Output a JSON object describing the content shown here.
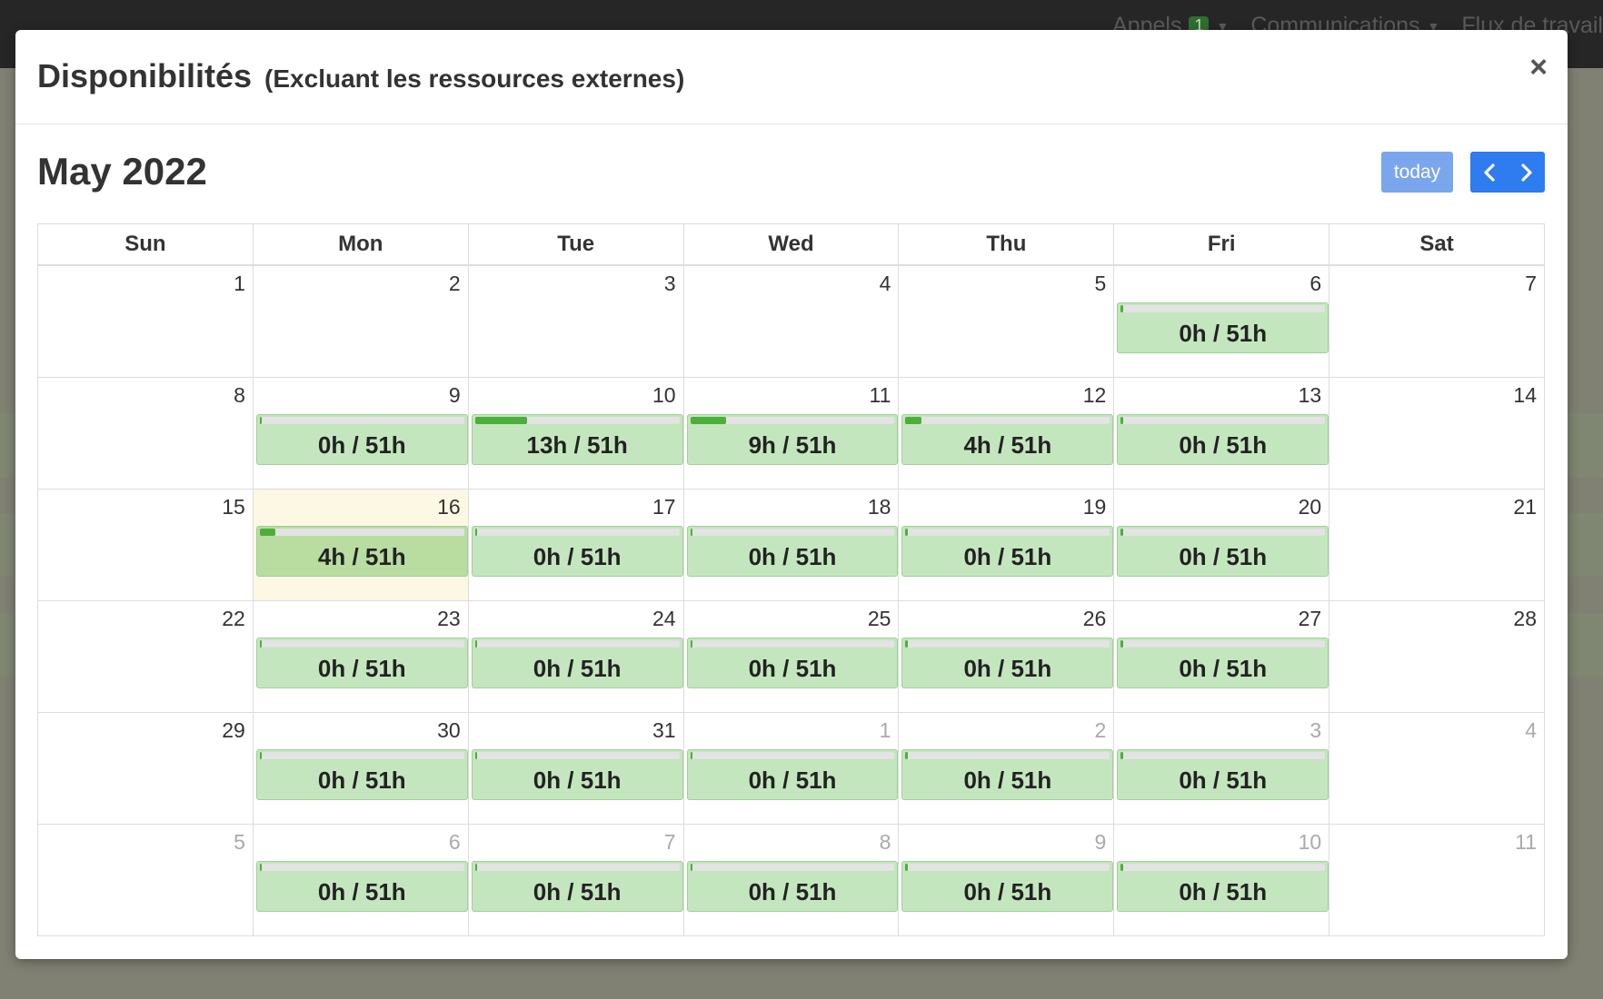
{
  "background": {
    "nav": [
      {
        "label": "Appels",
        "badge": "1"
      },
      {
        "label": "Communications"
      },
      {
        "label": "Flux de travail"
      }
    ]
  },
  "modal": {
    "title": "Disponibilités",
    "subtitle": "(Excluant les ressources externes)",
    "close_label": "×"
  },
  "calendar": {
    "month_title": "May 2022",
    "today_label": "today",
    "prev_icon": "chevron-left-icon",
    "next_icon": "chevron-right-icon",
    "weekdays": [
      "Sun",
      "Mon",
      "Tue",
      "Wed",
      "Thu",
      "Fri",
      "Sat"
    ],
    "weeks": [
      [
        {
          "n": "1"
        },
        {
          "n": "2"
        },
        {
          "n": "3"
        },
        {
          "n": "4"
        },
        {
          "n": "5"
        },
        {
          "n": "6",
          "hours": "0h / 51h",
          "used": 0
        },
        {
          "n": "7"
        }
      ],
      [
        {
          "n": "8"
        },
        {
          "n": "9",
          "hours": "0h / 51h",
          "used": 0
        },
        {
          "n": "10",
          "hours": "13h / 51h",
          "used": 13
        },
        {
          "n": "11",
          "hours": "9h / 51h",
          "used": 9
        },
        {
          "n": "12",
          "hours": "4h / 51h",
          "used": 4
        },
        {
          "n": "13",
          "hours": "0h / 51h",
          "used": 0
        },
        {
          "n": "14"
        }
      ],
      [
        {
          "n": "15"
        },
        {
          "n": "16",
          "hours": "4h / 51h",
          "used": 4,
          "today": true
        },
        {
          "n": "17",
          "hours": "0h / 51h",
          "used": 0
        },
        {
          "n": "18",
          "hours": "0h / 51h",
          "used": 0
        },
        {
          "n": "19",
          "hours": "0h / 51h",
          "used": 0
        },
        {
          "n": "20",
          "hours": "0h / 51h",
          "used": 0
        },
        {
          "n": "21"
        }
      ],
      [
        {
          "n": "22"
        },
        {
          "n": "23",
          "hours": "0h / 51h",
          "used": 0
        },
        {
          "n": "24",
          "hours": "0h / 51h",
          "used": 0
        },
        {
          "n": "25",
          "hours": "0h / 51h",
          "used": 0
        },
        {
          "n": "26",
          "hours": "0h / 51h",
          "used": 0
        },
        {
          "n": "27",
          "hours": "0h / 51h",
          "used": 0
        },
        {
          "n": "28"
        }
      ],
      [
        {
          "n": "29"
        },
        {
          "n": "30",
          "hours": "0h / 51h",
          "used": 0
        },
        {
          "n": "31",
          "hours": "0h / 51h",
          "used": 0
        },
        {
          "n": "1",
          "other": true,
          "hours": "0h / 51h",
          "used": 0
        },
        {
          "n": "2",
          "other": true,
          "hours": "0h / 51h",
          "used": 0
        },
        {
          "n": "3",
          "other": true,
          "hours": "0h / 51h",
          "used": 0
        },
        {
          "n": "4",
          "other": true
        }
      ],
      [
        {
          "n": "5",
          "other": true
        },
        {
          "n": "6",
          "other": true,
          "hours": "0h / 51h",
          "used": 0
        },
        {
          "n": "7",
          "other": true,
          "hours": "0h / 51h",
          "used": 0
        },
        {
          "n": "8",
          "other": true,
          "hours": "0h / 51h",
          "used": 0
        },
        {
          "n": "9",
          "other": true,
          "hours": "0h / 51h",
          "used": 0
        },
        {
          "n": "10",
          "other": true,
          "hours": "0h / 51h",
          "used": 0
        },
        {
          "n": "11",
          "other": true
        }
      ]
    ],
    "capacity_hours": 51,
    "colors": {
      "event_bg": "#c4e6be",
      "progress_fill": "#4caf3a",
      "today_bg": "#fcf8e3",
      "primary_btn": "#2f7bf0"
    }
  }
}
